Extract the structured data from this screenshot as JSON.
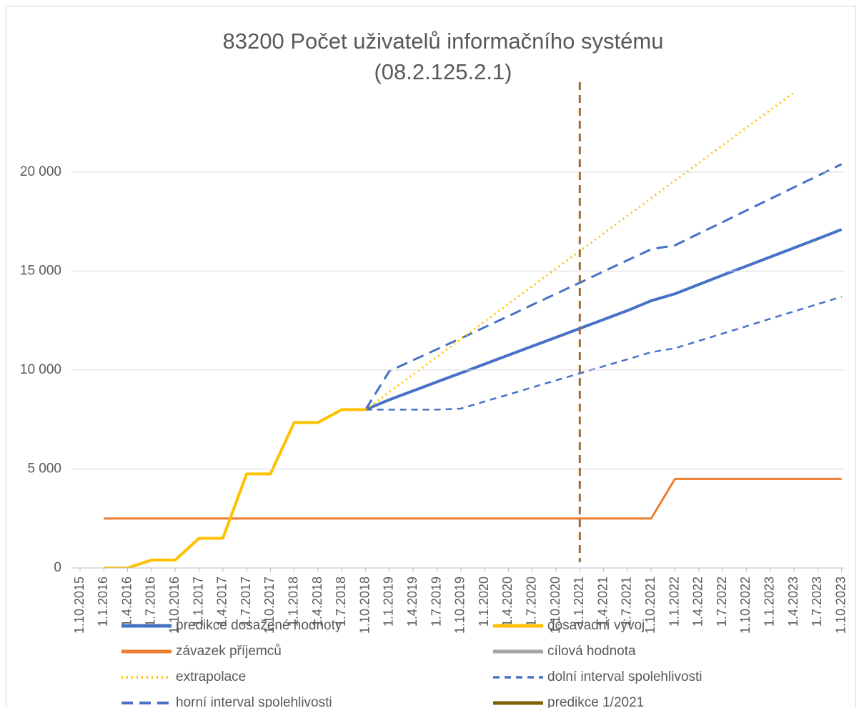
{
  "chart_data": {
    "type": "line",
    "title": "83200 Počet uživatelů informačního systému",
    "subtitle": "(08.2.125.2.1)",
    "categories": [
      "1.10.2015",
      "1.1.2016",
      "1.4.2016",
      "1.7.2016",
      "1.10.2016",
      "1.1.2017",
      "1.4.2017",
      "1.7.2017",
      "1.10.2017",
      "1.1.2018",
      "1.4.2018",
      "1.7.2018",
      "1.10.2018",
      "1.1.2019",
      "1.4.2019",
      "1.7.2019",
      "1.10.2019",
      "1.1.2020",
      "1.4.2020",
      "1.7.2020",
      "1.10.2020",
      "1.1.2021",
      "1.4.2021",
      "1.7.2021",
      "1.10.2021",
      "1.1.2022",
      "1.4.2022",
      "1.7.2022",
      "1.10.2022",
      "1.1.2023",
      "1.4.2023",
      "1.7.2023",
      "1.10.2023"
    ],
    "ylim": [
      0,
      24000
    ],
    "yticks": [
      {
        "value": 0,
        "label": "0"
      },
      {
        "value": 5000,
        "label": "5 000"
      },
      {
        "value": 10000,
        "label": "10 000"
      },
      {
        "value": 15000,
        "label": "15 000"
      },
      {
        "value": 20000,
        "label": "20 000"
      }
    ],
    "grid": true,
    "legend": "bottom",
    "series": [
      {
        "name": "predikce dosažené hodnoty",
        "color": "#4472c4",
        "dash": "solid",
        "values": [
          null,
          null,
          null,
          null,
          null,
          null,
          null,
          null,
          null,
          null,
          null,
          null,
          8000,
          8500,
          8950,
          9400,
          9850,
          10300,
          10750,
          11200,
          11650,
          12100,
          12550,
          13000,
          13500,
          13850,
          14320,
          14790,
          15250,
          15710,
          16170,
          16630,
          17100
        ]
      },
      {
        "name": "dosavadní vývoj",
        "color": "#ffc000",
        "dash": "solid",
        "values": [
          null,
          0,
          0,
          400,
          400,
          1500,
          1500,
          4750,
          4750,
          7350,
          7350,
          8000,
          8000,
          null,
          null,
          null,
          null,
          null,
          null,
          null,
          null,
          null,
          null,
          null,
          null,
          null,
          null,
          null,
          null,
          null,
          null,
          null,
          null
        ]
      },
      {
        "name": "závazek příjemců",
        "color": "#ed7d31",
        "dash": "solid",
        "values": [
          null,
          2500,
          2500,
          2500,
          2500,
          2500,
          2500,
          2500,
          2500,
          2500,
          2500,
          2500,
          2500,
          2500,
          2500,
          2500,
          2500,
          2500,
          2500,
          2500,
          2500,
          2500,
          2500,
          2500,
          2500,
          4500,
          4500,
          4500,
          4500,
          4500,
          4500,
          4500,
          4500
        ]
      },
      {
        "name": "cílová hodnota",
        "color": "#a5a5a5",
        "dash": "solid",
        "values": [
          null,
          null,
          null,
          null,
          null,
          null,
          null,
          null,
          null,
          null,
          null,
          null,
          null,
          null,
          null,
          null,
          null,
          null,
          null,
          null,
          null,
          null,
          null,
          null,
          null,
          null,
          null,
          null,
          null,
          null,
          null,
          null,
          null
        ]
      },
      {
        "name": "extrapolace",
        "color": "#ffc000",
        "dash": "dot",
        "values": [
          null,
          null,
          null,
          null,
          null,
          null,
          null,
          null,
          null,
          null,
          null,
          null,
          8000,
          8890,
          9780,
          10670,
          11560,
          12450,
          13340,
          14230,
          15120,
          16010,
          16900,
          17790,
          18680,
          19570,
          20460,
          21350,
          22240,
          23130,
          24020,
          null,
          null
        ]
      },
      {
        "name": "dolní interval spolehlivosti",
        "color": "#4472c4",
        "dash": "dash",
        "values": [
          null,
          null,
          null,
          null,
          null,
          null,
          null,
          null,
          null,
          null,
          null,
          null,
          8000,
          8000,
          8000,
          8000,
          8050,
          8410,
          8760,
          9120,
          9480,
          9830,
          10190,
          10540,
          10900,
          11100,
          11470,
          11840,
          12210,
          12590,
          12960,
          13330,
          13700
        ]
      },
      {
        "name": "horní interval spolehlivosti",
        "color": "#4472c4",
        "dash": "longdash",
        "values": [
          null,
          null,
          null,
          null,
          null,
          null,
          null,
          null,
          null,
          null,
          null,
          null,
          8000,
          9950,
          10500,
          11050,
          11600,
          12160,
          12720,
          13290,
          13850,
          14410,
          14980,
          15540,
          16100,
          16300,
          16890,
          17470,
          18060,
          18640,
          19230,
          19810,
          20400
        ]
      },
      {
        "name": "predikce 1/2021",
        "color": "#7f6000",
        "line_color": "#9e6b3a",
        "at": "1.1.2021"
      }
    ]
  }
}
